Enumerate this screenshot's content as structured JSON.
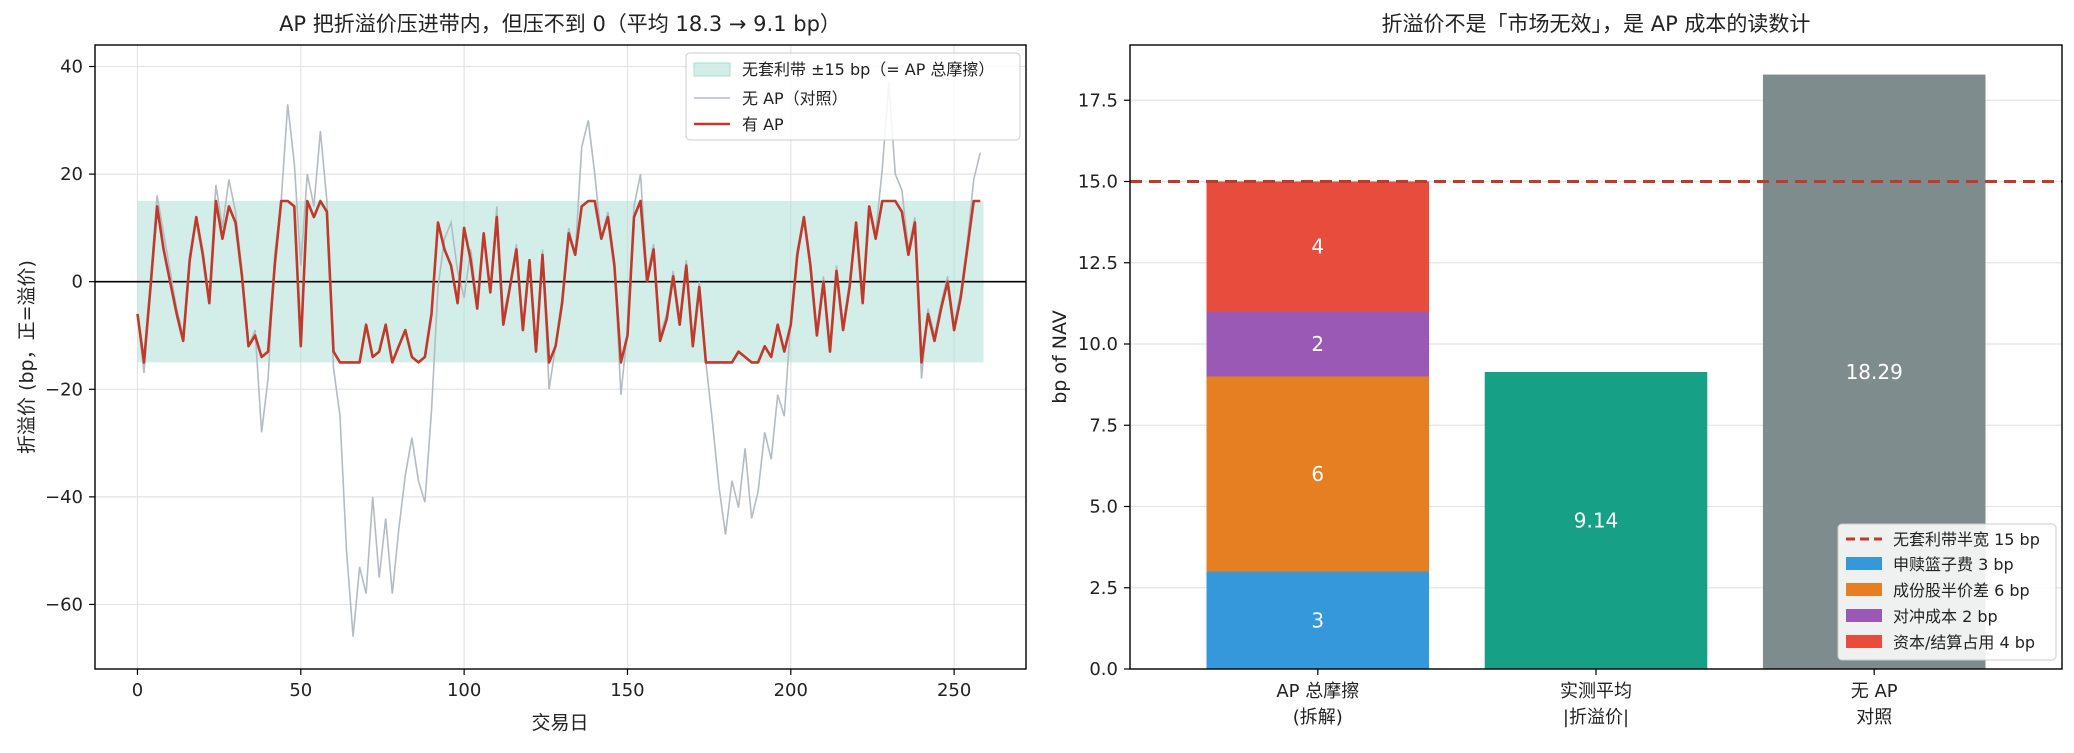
{
  "chart_data": [
    {
      "type": "line",
      "title": "AP 把折溢价压进带内，但压不到 0（平均 18.3 → 9.1 bp）",
      "xlabel": "交易日",
      "ylabel": "折溢价 (bp，正=溢价)",
      "xlim": [
        -13,
        272
      ],
      "ylim": [
        -72,
        44
      ],
      "x_ticks": [
        0,
        50,
        100,
        150,
        200,
        250
      ],
      "y_ticks": [
        -60,
        -40,
        -20,
        0,
        20,
        40
      ],
      "x_tick_labels": [
        "0",
        "50",
        "100",
        "150",
        "200",
        "250"
      ],
      "y_tick_labels": [
        "−60",
        "−40",
        "−20",
        "0",
        "20",
        "40"
      ],
      "grid": true,
      "legend_position": "top-right",
      "band": {
        "name": "无套利带 ±15 bp（= AP 总摩擦）",
        "low": -15,
        "high": 15,
        "x": [
          0,
          259
        ],
        "color": "#a8ddd2"
      },
      "zero_line": 0,
      "series": [
        {
          "name": "无 AP（对照）",
          "color": "#b3bcc2",
          "x": [
            0,
            2,
            4,
            6,
            8,
            10,
            12,
            14,
            16,
            18,
            20,
            22,
            24,
            26,
            28,
            30,
            32,
            34,
            36,
            38,
            40,
            42,
            44,
            46,
            48,
            50,
            52,
            54,
            56,
            58,
            60,
            62,
            64,
            66,
            68,
            70,
            72,
            74,
            76,
            78,
            80,
            82,
            84,
            86,
            88,
            90,
            92,
            94,
            96,
            98,
            100,
            102,
            104,
            106,
            108,
            110,
            112,
            114,
            116,
            118,
            120,
            122,
            124,
            126,
            128,
            130,
            132,
            134,
            136,
            138,
            140,
            142,
            144,
            146,
            148,
            150,
            152,
            154,
            156,
            158,
            160,
            162,
            164,
            166,
            168,
            170,
            172,
            174,
            176,
            178,
            180,
            182,
            184,
            186,
            188,
            190,
            192,
            194,
            196,
            198,
            200,
            202,
            204,
            206,
            208,
            210,
            212,
            214,
            216,
            218,
            220,
            222,
            224,
            226,
            228,
            230,
            232,
            234,
            236,
            238,
            240,
            242,
            244,
            246,
            248,
            250,
            252,
            254,
            256,
            258
          ],
          "y": [
            -6,
            -17,
            0,
            16,
            9,
            2,
            -5,
            -10,
            5,
            12,
            6,
            -3,
            18,
            10,
            19,
            13,
            2,
            -12,
            -9,
            -28,
            -18,
            5,
            15,
            33,
            22,
            3,
            20,
            14,
            28,
            15,
            -16,
            -25,
            -50,
            -66,
            -53,
            -58,
            -40,
            -55,
            -44,
            -58,
            -46,
            -36,
            -29,
            -37,
            -41,
            -24,
            -1,
            8,
            11,
            2,
            -3,
            6,
            -4,
            9,
            -2,
            14,
            -6,
            -1,
            7,
            -9,
            4,
            -13,
            6,
            -20,
            -12,
            -3,
            10,
            5,
            25,
            30,
            20,
            8,
            13,
            4,
            -21,
            -9,
            14,
            20,
            1,
            7,
            -10,
            -6,
            2,
            -7,
            4,
            -11,
            0,
            -15,
            -26,
            -38,
            -47,
            -37,
            -42,
            -31,
            -44,
            -39,
            -28,
            -33,
            -21,
            -25,
            -7,
            6,
            12,
            4,
            -9,
            1,
            -12,
            3,
            -8,
            0,
            11,
            -3,
            14,
            9,
            21,
            37,
            20,
            17,
            6,
            12,
            -18,
            -5,
            -10,
            -4,
            1,
            -8,
            -2,
            7,
            19,
            24
          ]
        },
        {
          "name": "有 AP",
          "color": "#c0392b",
          "x": [
            0,
            2,
            4,
            6,
            8,
            10,
            12,
            14,
            16,
            18,
            20,
            22,
            24,
            26,
            28,
            30,
            32,
            34,
            36,
            38,
            40,
            42,
            44,
            46,
            48,
            50,
            52,
            54,
            56,
            58,
            60,
            62,
            64,
            66,
            68,
            70,
            72,
            74,
            76,
            78,
            80,
            82,
            84,
            86,
            88,
            90,
            92,
            94,
            96,
            98,
            100,
            102,
            104,
            106,
            108,
            110,
            112,
            114,
            116,
            118,
            120,
            122,
            124,
            126,
            128,
            130,
            132,
            134,
            136,
            138,
            140,
            142,
            144,
            146,
            148,
            150,
            152,
            154,
            156,
            158,
            160,
            162,
            164,
            166,
            168,
            170,
            172,
            174,
            176,
            178,
            180,
            182,
            184,
            186,
            188,
            190,
            192,
            194,
            196,
            198,
            200,
            202,
            204,
            206,
            208,
            210,
            212,
            214,
            216,
            218,
            220,
            222,
            224,
            226,
            228,
            230,
            232,
            234,
            236,
            238,
            240,
            242,
            244,
            246,
            248,
            250,
            252,
            254,
            256,
            258
          ],
          "y": [
            -6,
            -15,
            -1,
            14,
            6,
            0,
            -6,
            -11,
            4,
            12,
            5,
            -4,
            15,
            8,
            14,
            11,
            1,
            -12,
            -10,
            -14,
            -13,
            3,
            15,
            15,
            14,
            -12,
            15,
            12,
            15,
            13,
            -13,
            -15,
            -15,
            -15,
            -15,
            -8,
            -14,
            -13,
            -8,
            -15,
            -12,
            -9,
            -14,
            -15,
            -14,
            -6,
            11,
            6,
            3,
            -4,
            10,
            4,
            -5,
            9,
            -2,
            12,
            -8,
            -1,
            6,
            -9,
            4,
            -13,
            5,
            -15,
            -12,
            -4,
            9,
            5,
            14,
            15,
            15,
            8,
            12,
            3,
            -15,
            -10,
            12,
            15,
            0,
            6,
            -11,
            -7,
            1,
            -8,
            3,
            -12,
            -1,
            -15,
            -15,
            -15,
            -15,
            -15,
            -13,
            -14,
            -15,
            -15,
            -12,
            -14,
            -8,
            -13,
            -8,
            5,
            12,
            3,
            -10,
            0,
            -13,
            2,
            -9,
            -1,
            11,
            -4,
            14,
            8,
            15,
            15,
            15,
            13,
            5,
            11,
            -15,
            -6,
            -11,
            -5,
            0,
            -9,
            -3,
            6,
            15,
            15
          ]
        }
      ]
    },
    {
      "type": "bar",
      "title": "折溢价不是「市场无效」，是 AP 成本的读数计",
      "ylabel": "bp of NAV",
      "ylim": [
        0,
        19.2
      ],
      "y_ticks": [
        0,
        2.5,
        5,
        7.5,
        10,
        12.5,
        15,
        17.5
      ],
      "y_tick_labels": [
        "0.0",
        "2.5",
        "5.0",
        "7.5",
        "10.0",
        "12.5",
        "15.0",
        "17.5"
      ],
      "grid": true,
      "legend_position": "bottom-right",
      "categories": [
        "AP 总摩擦\n(拆解)",
        "实测平均\n|折溢价|",
        "无 AP\n对照"
      ],
      "stacked": {
        "category_index": 0,
        "segments": [
          {
            "name": "申赎篮子费 3 bp",
            "value": 3,
            "label": "3",
            "color": "#3498db"
          },
          {
            "name": "成份股半价差 6 bp",
            "value": 6,
            "label": "6",
            "color": "#e67e22"
          },
          {
            "name": "对冲成本 2 bp",
            "value": 2,
            "label": "2",
            "color": "#9b59b6"
          },
          {
            "name": "资本/结算占用 4 bp",
            "value": 4,
            "label": "4",
            "color": "#e74c3c"
          }
        ]
      },
      "bars": [
        {
          "category_index": 1,
          "value": 9.14,
          "label": "9.14",
          "color": "#16a085"
        },
        {
          "category_index": 2,
          "value": 18.29,
          "label": "18.29",
          "color": "#7f8c8d"
        }
      ],
      "reference_line": {
        "name": "无套利带半宽 15 bp",
        "value": 15,
        "color": "#c0392b"
      }
    }
  ]
}
